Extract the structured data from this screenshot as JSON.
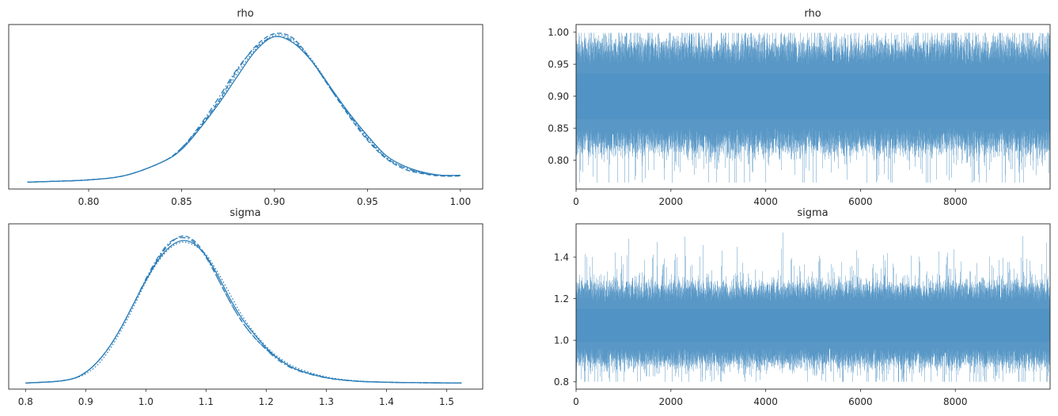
{
  "figure": {
    "panels_note_free": true
  },
  "colors": {
    "line": "#2a7db8",
    "trace": "#4a8fc2",
    "frame": "#262626",
    "text": "#262626"
  },
  "chart_data": [
    {
      "id": "rho_density",
      "type": "line",
      "title": "rho",
      "xlabel": "",
      "ylabel": "",
      "xlim": [
        0.757,
        1.012
      ],
      "xticks": [
        0.8,
        0.85,
        0.9,
        0.95,
        1.0
      ],
      "xtick_labels": [
        "0.80",
        "0.85",
        "0.90",
        "0.95",
        "1.00"
      ],
      "yticks_shown": false,
      "grid": false,
      "series": [
        {
          "linestyle": "solid",
          "x": [
            0.767,
            0.78,
            0.8,
            0.82,
            0.84,
            0.85,
            0.86,
            0.87,
            0.88,
            0.89,
            0.9,
            0.91,
            0.92,
            0.93,
            0.94,
            0.95,
            0.96,
            0.97,
            0.98,
            0.99,
            1.0
          ],
          "y": [
            0.005,
            0.01,
            0.02,
            0.05,
            0.14,
            0.22,
            0.36,
            0.52,
            0.7,
            0.87,
            0.96,
            0.92,
            0.8,
            0.63,
            0.46,
            0.31,
            0.18,
            0.11,
            0.07,
            0.05,
            0.05
          ]
        },
        {
          "linestyle": "dashed",
          "x": [
            0.767,
            0.78,
            0.8,
            0.82,
            0.84,
            0.85,
            0.86,
            0.87,
            0.88,
            0.89,
            0.9,
            0.91,
            0.92,
            0.93,
            0.94,
            0.95,
            0.96,
            0.97,
            0.98,
            0.99,
            1.0
          ],
          "y": [
            0.005,
            0.01,
            0.02,
            0.05,
            0.14,
            0.23,
            0.37,
            0.54,
            0.74,
            0.9,
            0.98,
            0.95,
            0.8,
            0.62,
            0.44,
            0.28,
            0.16,
            0.09,
            0.06,
            0.045,
            0.045
          ]
        },
        {
          "linestyle": "dotted",
          "x": [
            0.767,
            0.78,
            0.8,
            0.82,
            0.84,
            0.85,
            0.86,
            0.87,
            0.88,
            0.89,
            0.9,
            0.91,
            0.92,
            0.93,
            0.94,
            0.95,
            0.96,
            0.97,
            0.98,
            0.99,
            1.0
          ],
          "y": [
            0.005,
            0.01,
            0.02,
            0.05,
            0.14,
            0.22,
            0.36,
            0.53,
            0.72,
            0.88,
            0.97,
            0.94,
            0.81,
            0.63,
            0.45,
            0.3,
            0.17,
            0.1,
            0.065,
            0.05,
            0.05
          ]
        },
        {
          "linestyle": "dashdot",
          "x": [
            0.767,
            0.78,
            0.8,
            0.82,
            0.84,
            0.85,
            0.86,
            0.87,
            0.88,
            0.89,
            0.9,
            0.91,
            0.92,
            0.93,
            0.94,
            0.95,
            0.96,
            0.97,
            0.98,
            0.99,
            1.0
          ],
          "y": [
            0.005,
            0.01,
            0.02,
            0.05,
            0.14,
            0.23,
            0.38,
            0.56,
            0.75,
            0.89,
            0.96,
            0.93,
            0.8,
            0.62,
            0.45,
            0.29,
            0.165,
            0.1,
            0.065,
            0.05,
            0.05
          ]
        }
      ]
    },
    {
      "id": "rho_trace",
      "type": "line",
      "title": "rho",
      "xlabel": "",
      "ylabel": "",
      "xlim": [
        0,
        9999
      ],
      "ylim": [
        0.755,
        1.012
      ],
      "xticks": [
        0,
        2000,
        4000,
        6000,
        8000
      ],
      "xtick_labels": [
        "0",
        "2000",
        "4000",
        "6000",
        "8000"
      ],
      "yticks": [
        0.8,
        0.85,
        0.9,
        0.95,
        1.0
      ],
      "ytick_labels": [
        "0.80",
        "0.85",
        "0.90",
        "0.95",
        "1.00"
      ],
      "grid": false,
      "draws": 10000,
      "chains": 4,
      "center": 0.9,
      "sd": 0.03,
      "band_low": 0.835,
      "band_high": 0.965,
      "min_observed": 0.765,
      "max_observed": 0.999
    },
    {
      "id": "sigma_density",
      "type": "line",
      "title": "sigma",
      "xlabel": "",
      "ylabel": "",
      "xlim": [
        0.772,
        1.56
      ],
      "xticks": [
        0.8,
        0.9,
        1.0,
        1.1,
        1.2,
        1.3,
        1.4,
        1.5
      ],
      "xtick_labels": [
        "0.8",
        "0.9",
        "1.0",
        "1.1",
        "1.2",
        "1.3",
        "1.4",
        "1.5"
      ],
      "yticks_shown": false,
      "grid": false,
      "series": [
        {
          "linestyle": "solid",
          "x": [
            0.8,
            0.85,
            0.88,
            0.9,
            0.92,
            0.94,
            0.96,
            0.98,
            1.0,
            1.02,
            1.04,
            1.06,
            1.08,
            1.1,
            1.12,
            1.14,
            1.16,
            1.18,
            1.2,
            1.22,
            1.25,
            1.3,
            1.35,
            1.4,
            1.45,
            1.525
          ],
          "y": [
            0.0,
            0.01,
            0.03,
            0.07,
            0.14,
            0.24,
            0.37,
            0.52,
            0.67,
            0.8,
            0.89,
            0.93,
            0.91,
            0.83,
            0.7,
            0.55,
            0.42,
            0.32,
            0.23,
            0.16,
            0.09,
            0.035,
            0.012,
            0.005,
            0.002,
            0.0
          ]
        },
        {
          "linestyle": "dashed",
          "x": [
            0.8,
            0.85,
            0.88,
            0.9,
            0.92,
            0.94,
            0.96,
            0.98,
            1.0,
            1.02,
            1.04,
            1.06,
            1.08,
            1.1,
            1.12,
            1.14,
            1.16,
            1.18,
            1.2,
            1.22,
            1.25,
            1.3,
            1.35,
            1.4,
            1.45,
            1.525
          ],
          "y": [
            0.0,
            0.01,
            0.03,
            0.07,
            0.14,
            0.24,
            0.37,
            0.52,
            0.67,
            0.81,
            0.91,
            0.96,
            0.93,
            0.83,
            0.68,
            0.53,
            0.4,
            0.3,
            0.22,
            0.16,
            0.09,
            0.035,
            0.012,
            0.005,
            0.002,
            0.0
          ]
        },
        {
          "linestyle": "dotted",
          "x": [
            0.8,
            0.85,
            0.88,
            0.9,
            0.92,
            0.94,
            0.96,
            0.98,
            1.0,
            1.02,
            1.04,
            1.06,
            1.08,
            1.1,
            1.12,
            1.14,
            1.16,
            1.18,
            1.2,
            1.22,
            1.25,
            1.3,
            1.35,
            1.4,
            1.45,
            1.525
          ],
          "y": [
            0.0,
            0.01,
            0.03,
            0.06,
            0.12,
            0.22,
            0.35,
            0.5,
            0.66,
            0.79,
            0.88,
            0.92,
            0.9,
            0.84,
            0.72,
            0.58,
            0.44,
            0.33,
            0.24,
            0.17,
            0.1,
            0.04,
            0.014,
            0.006,
            0.002,
            0.0
          ]
        },
        {
          "linestyle": "dashdot",
          "x": [
            0.8,
            0.85,
            0.88,
            0.9,
            0.92,
            0.94,
            0.96,
            0.98,
            1.0,
            1.02,
            1.04,
            1.06,
            1.08,
            1.1,
            1.12,
            1.14,
            1.16,
            1.18,
            1.2,
            1.22,
            1.25,
            1.3,
            1.35,
            1.4,
            1.45,
            1.525
          ],
          "y": [
            0.0,
            0.01,
            0.03,
            0.07,
            0.14,
            0.24,
            0.37,
            0.52,
            0.68,
            0.82,
            0.92,
            0.95,
            0.92,
            0.82,
            0.68,
            0.53,
            0.4,
            0.3,
            0.22,
            0.15,
            0.085,
            0.033,
            0.012,
            0.005,
            0.002,
            0.0
          ]
        }
      ]
    },
    {
      "id": "sigma_trace",
      "type": "line",
      "title": "sigma",
      "xlabel": "",
      "ylabel": "",
      "xlim": [
        0,
        9999
      ],
      "ylim": [
        0.765,
        1.56
      ],
      "xticks": [
        0,
        2000,
        4000,
        6000,
        8000
      ],
      "xtick_labels": [
        "0",
        "2000",
        "4000",
        "6000",
        "8000"
      ],
      "yticks": [
        0.8,
        1.0,
        1.2,
        1.4
      ],
      "ytick_labels": [
        "0.8",
        "1.0",
        "1.2",
        "1.4"
      ],
      "grid": false,
      "draws": 10000,
      "chains": 4,
      "center": 1.07,
      "sd": 0.08,
      "band_low": 0.93,
      "band_high": 1.22,
      "min_observed": 0.8,
      "max_observed": 1.52
    }
  ]
}
